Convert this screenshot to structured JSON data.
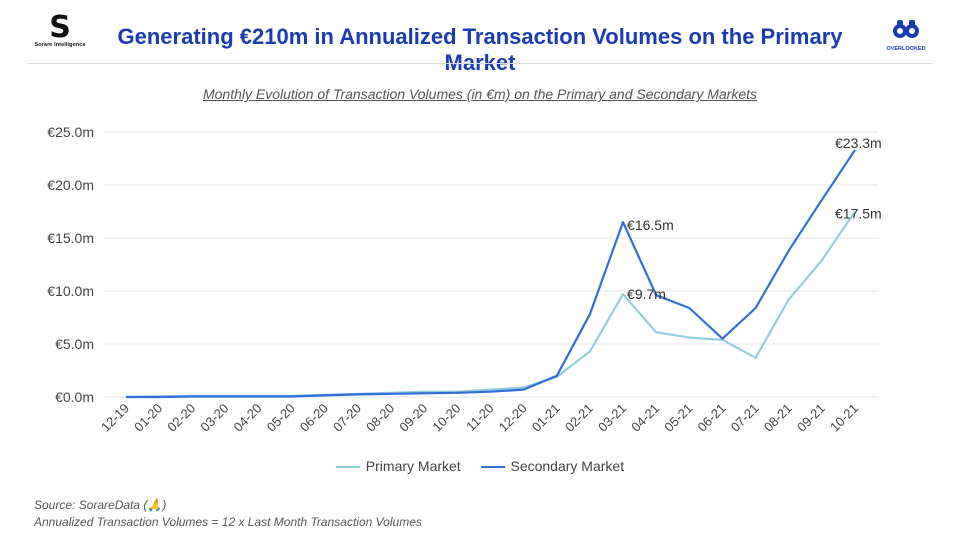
{
  "header": {
    "title": "Generating €210m in Annualized Transaction Volumes on the Primary Market",
    "left_logo_caption": "Sorare Intelligence",
    "right_logo_caption": "OVERLOOKED"
  },
  "colors": {
    "title": "#1a3bb3",
    "primary": "#92cddc",
    "secondary": "#2e6fd8",
    "grid": "#e6e6e6"
  },
  "chart_data": {
    "type": "line",
    "title": "Monthly Evolution of Transaction Volumes (in €m) on the Primary and Secondary Markets",
    "xlabel": "",
    "ylabel": "",
    "categories": [
      "12-19",
      "01-20",
      "02-20",
      "03-20",
      "04-20",
      "05-20",
      "06-20",
      "07-20",
      "08-20",
      "09-20",
      "10-20",
      "11-20",
      "12-20",
      "01-21",
      "02-21",
      "03-21",
      "04-21",
      "05-21",
      "06-21",
      "07-21",
      "08-21",
      "09-21",
      "10-21"
    ],
    "series": [
      {
        "name": "Primary Market",
        "values": [
          0.0,
          0.05,
          0.1,
          0.1,
          0.1,
          0.1,
          0.2,
          0.3,
          0.4,
          0.5,
          0.5,
          0.7,
          0.9,
          1.9,
          4.3,
          9.7,
          6.1,
          5.6,
          5.4,
          3.7,
          9.2,
          12.9,
          17.5
        ]
      },
      {
        "name": "Secondary Market",
        "values": [
          0.0,
          0.0,
          0.05,
          0.05,
          0.05,
          0.05,
          0.15,
          0.25,
          0.3,
          0.35,
          0.4,
          0.5,
          0.7,
          2.0,
          7.8,
          16.5,
          9.6,
          8.4,
          5.5,
          8.4,
          13.8,
          18.6,
          23.3
        ]
      }
    ],
    "ylim": [
      0,
      25
    ],
    "yticks": [
      0,
      5,
      10,
      15,
      20,
      25
    ],
    "ytick_labels": [
      "€0.0m",
      "€5.0m",
      "€10.0m",
      "€15.0m",
      "€20.0m",
      "€25.0m"
    ],
    "grid": true,
    "legend_position": "bottom",
    "annotations": [
      {
        "series": "Secondary Market",
        "category": "03-21",
        "text": "€16.5m"
      },
      {
        "series": "Primary Market",
        "category": "03-21",
        "text": "€9.7m"
      },
      {
        "series": "Secondary Market",
        "category": "10-21",
        "text": "€23.3m"
      },
      {
        "series": "Primary Market",
        "category": "10-21",
        "text": "€17.5m"
      }
    ]
  },
  "footnotes": {
    "source": "Source: SorareData (🙏)",
    "method": "Annualized Transaction Volumes = 12 x Last Month Transaction Volumes"
  }
}
